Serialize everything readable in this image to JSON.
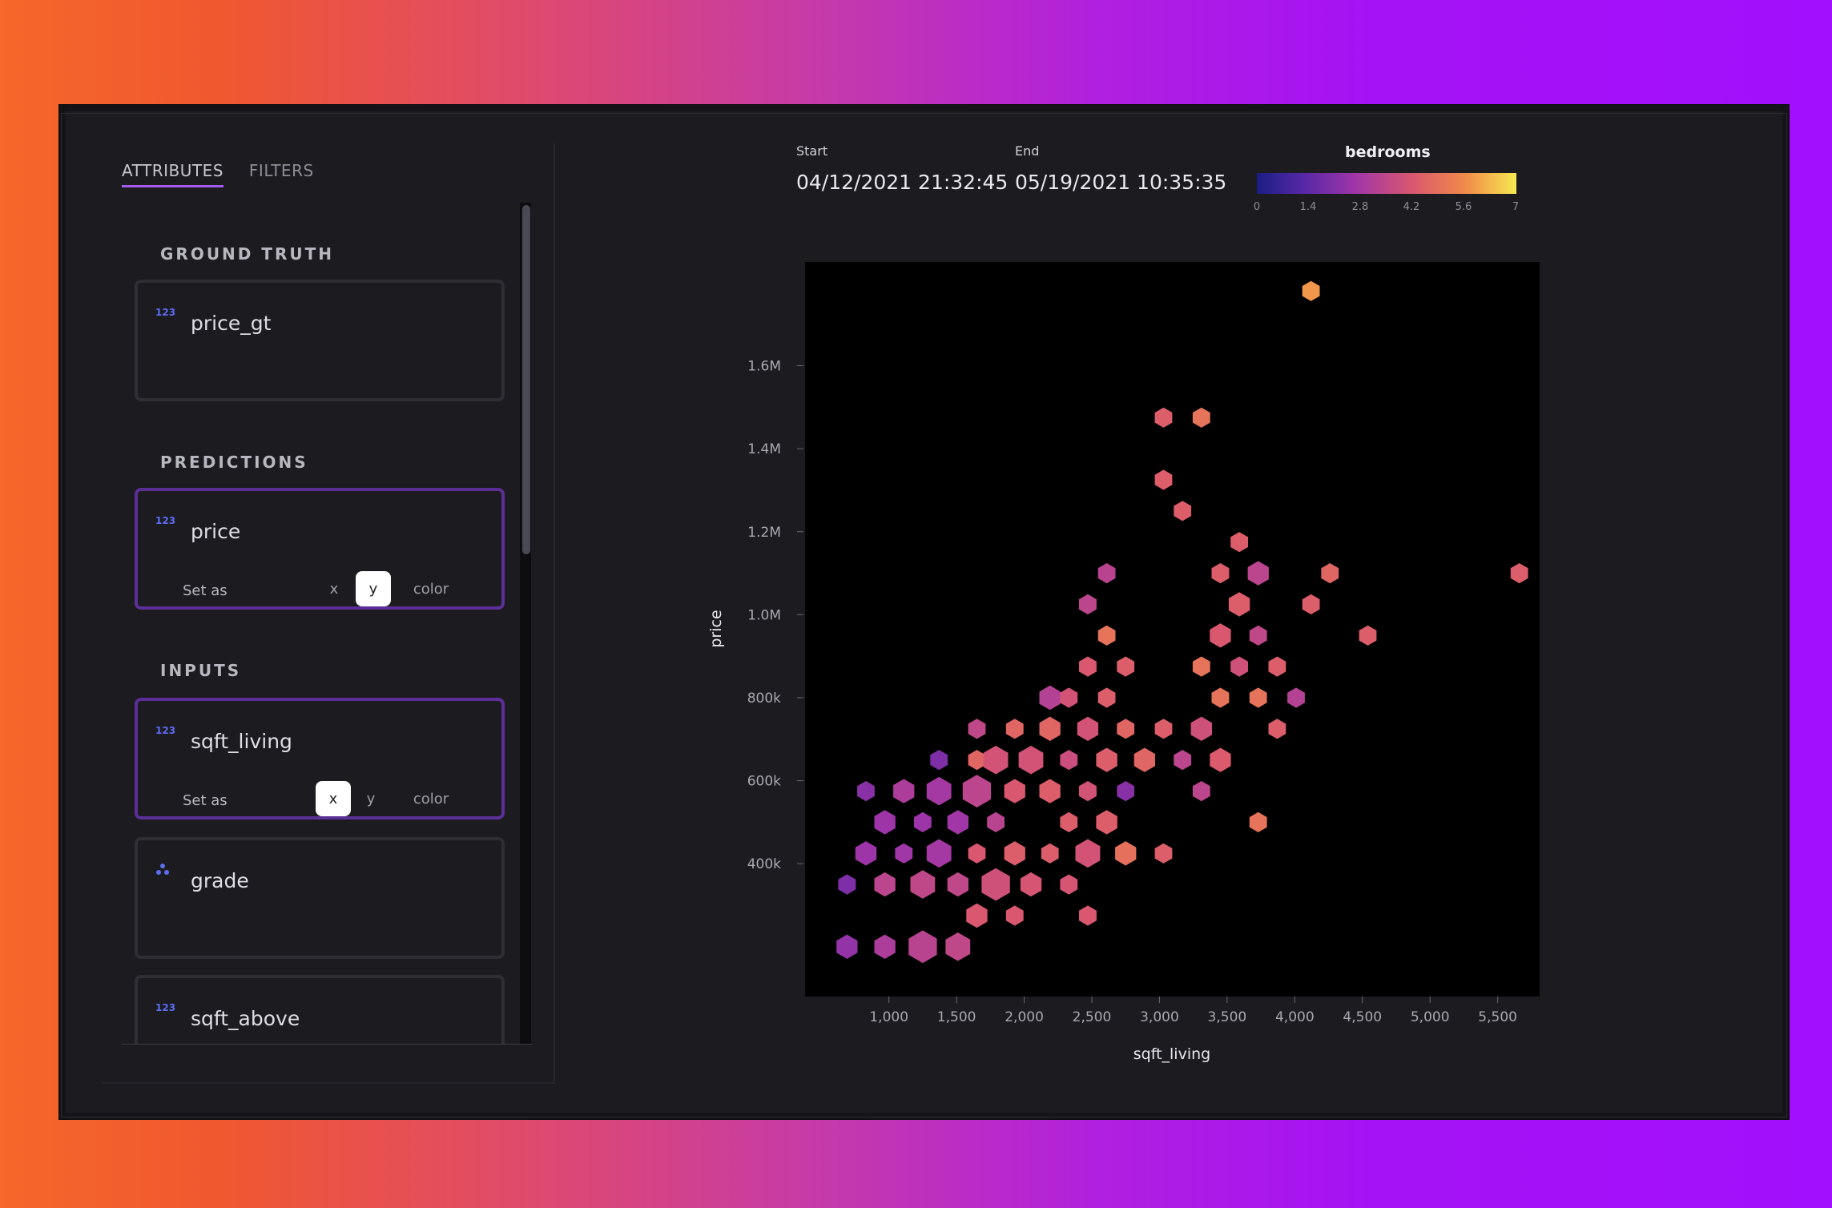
{
  "tabs": [
    "ATTRIBUTES",
    "FILTERS"
  ],
  "sections": {
    "ground_truth": "GROUND TRUTH",
    "predictions": "PREDICTIONS",
    "inputs": "INPUTS"
  },
  "cards": {
    "price_gt": {
      "name": "price_gt",
      "type_icon": "numeric-icon"
    },
    "price": {
      "name": "price",
      "type_icon": "numeric-icon",
      "set_as": "Set as",
      "x": "x",
      "y": "y",
      "color": "color",
      "selected_axis": "y"
    },
    "sqft_living": {
      "name": "sqft_living",
      "type_icon": "numeric-icon",
      "set_as": "Set as",
      "x": "x",
      "y": "y",
      "color": "color",
      "selected_axis": "x"
    },
    "grade": {
      "name": "grade",
      "type_icon": "categorical-icon"
    },
    "sqft_above": {
      "name": "sqft_above",
      "type_icon": "numeric-icon"
    }
  },
  "numeric_icon_text": "123",
  "time_range": {
    "start_label": "Start",
    "start_value": "04/12/2021 21:32:45",
    "end_label": "End",
    "end_value": "05/19/2021 10:35:35"
  },
  "legend": {
    "title": "bedrooms",
    "ticks": [
      "0",
      "1.4",
      "2.8",
      "4.2",
      "5.6",
      "7"
    ]
  },
  "colors": {
    "accent": "#a45cf0",
    "selected_border": "#5c2f98",
    "icon_blue": "#5d6cf3"
  },
  "chart_data": {
    "type": "heatmap",
    "subtype": "hexbin",
    "xlabel": "sqft_living",
    "ylabel": "price",
    "color_attribute": "bedrooms",
    "color_range": [
      0,
      7
    ],
    "x_ticks": [
      "1,000",
      "1,500",
      "2,000",
      "2,500",
      "3,000",
      "3,500",
      "4,000",
      "4,500",
      "5,000",
      "5,500"
    ],
    "y_ticks": [
      "400k",
      "600k",
      "800k",
      "1.0M",
      "1.2M",
      "1.4M",
      "1.6M"
    ],
    "xlim": [
      380,
      5810
    ],
    "ylim": [
      80000,
      1850000
    ],
    "bins": [
      {
        "x": 4120,
        "y": 1780000,
        "c": 5.8,
        "n": 1
      },
      {
        "x": 3030,
        "y": 1475000,
        "c": 4.4,
        "n": 1
      },
      {
        "x": 3310,
        "y": 1475000,
        "c": 5.0,
        "n": 1
      },
      {
        "x": 3030,
        "y": 1325000,
        "c": 4.4,
        "n": 1
      },
      {
        "x": 3170,
        "y": 1250000,
        "c": 4.4,
        "n": 1
      },
      {
        "x": 3590,
        "y": 1175000,
        "c": 4.4,
        "n": 1
      },
      {
        "x": 2610,
        "y": 1100000,
        "c": 3.3,
        "n": 1
      },
      {
        "x": 3450,
        "y": 1100000,
        "c": 4.4,
        "n": 1
      },
      {
        "x": 3730,
        "y": 1100000,
        "c": 3.4,
        "n": 2
      },
      {
        "x": 4260,
        "y": 1100000,
        "c": 4.6,
        "n": 1
      },
      {
        "x": 5660,
        "y": 1100000,
        "c": 4.4,
        "n": 1
      },
      {
        "x": 2470,
        "y": 1025000,
        "c": 3.4,
        "n": 1
      },
      {
        "x": 3590,
        "y": 1025000,
        "c": 4.4,
        "n": 2
      },
      {
        "x": 4120,
        "y": 1025000,
        "c": 4.4,
        "n": 1
      },
      {
        "x": 2610,
        "y": 950000,
        "c": 5.0,
        "n": 1
      },
      {
        "x": 3450,
        "y": 950000,
        "c": 4.2,
        "n": 2
      },
      {
        "x": 3730,
        "y": 950000,
        "c": 3.5,
        "n": 1
      },
      {
        "x": 4540,
        "y": 950000,
        "c": 4.4,
        "n": 1
      },
      {
        "x": 2470,
        "y": 875000,
        "c": 4.2,
        "n": 1
      },
      {
        "x": 2750,
        "y": 875000,
        "c": 4.4,
        "n": 1
      },
      {
        "x": 3310,
        "y": 875000,
        "c": 5.0,
        "n": 1
      },
      {
        "x": 3590,
        "y": 875000,
        "c": 3.9,
        "n": 1
      },
      {
        "x": 3870,
        "y": 875000,
        "c": 4.4,
        "n": 1
      },
      {
        "x": 2190,
        "y": 800000,
        "c": 3.2,
        "n": 2
      },
      {
        "x": 2330,
        "y": 800000,
        "c": 4.0,
        "n": 1
      },
      {
        "x": 2610,
        "y": 800000,
        "c": 4.4,
        "n": 1
      },
      {
        "x": 3450,
        "y": 800000,
        "c": 5.0,
        "n": 1
      },
      {
        "x": 3730,
        "y": 800000,
        "c": 5.0,
        "n": 1
      },
      {
        "x": 4010,
        "y": 800000,
        "c": 3.2,
        "n": 1
      },
      {
        "x": 1650,
        "y": 725000,
        "c": 3.5,
        "n": 1
      },
      {
        "x": 1930,
        "y": 725000,
        "c": 4.6,
        "n": 1
      },
      {
        "x": 2190,
        "y": 725000,
        "c": 4.6,
        "n": 2
      },
      {
        "x": 2470,
        "y": 725000,
        "c": 4.0,
        "n": 2
      },
      {
        "x": 2750,
        "y": 725000,
        "c": 4.6,
        "n": 1
      },
      {
        "x": 3030,
        "y": 725000,
        "c": 4.4,
        "n": 1
      },
      {
        "x": 3310,
        "y": 725000,
        "c": 3.9,
        "n": 2
      },
      {
        "x": 3870,
        "y": 725000,
        "c": 4.4,
        "n": 1
      },
      {
        "x": 1370,
        "y": 650000,
        "c": 2.0,
        "n": 1
      },
      {
        "x": 1650,
        "y": 650000,
        "c": 4.6,
        "n": 1
      },
      {
        "x": 1790,
        "y": 650000,
        "c": 4.0,
        "n": 3
      },
      {
        "x": 2050,
        "y": 650000,
        "c": 4.0,
        "n": 3
      },
      {
        "x": 2330,
        "y": 650000,
        "c": 3.8,
        "n": 1
      },
      {
        "x": 2610,
        "y": 650000,
        "c": 4.4,
        "n": 2
      },
      {
        "x": 2890,
        "y": 650000,
        "c": 4.6,
        "n": 2
      },
      {
        "x": 3170,
        "y": 650000,
        "c": 3.4,
        "n": 1
      },
      {
        "x": 3450,
        "y": 650000,
        "c": 4.3,
        "n": 2
      },
      {
        "x": 830,
        "y": 575000,
        "c": 2.2,
        "n": 1
      },
      {
        "x": 1110,
        "y": 575000,
        "c": 3.0,
        "n": 2
      },
      {
        "x": 1370,
        "y": 575000,
        "c": 2.8,
        "n": 3
      },
      {
        "x": 1650,
        "y": 575000,
        "c": 3.4,
        "n": 4
      },
      {
        "x": 1930,
        "y": 575000,
        "c": 4.2,
        "n": 2
      },
      {
        "x": 2190,
        "y": 575000,
        "c": 4.4,
        "n": 2
      },
      {
        "x": 2470,
        "y": 575000,
        "c": 4.0,
        "n": 1
      },
      {
        "x": 2750,
        "y": 575000,
        "c": 2.2,
        "n": 1
      },
      {
        "x": 3310,
        "y": 575000,
        "c": 3.4,
        "n": 1
      },
      {
        "x": 970,
        "y": 500000,
        "c": 2.6,
        "n": 2
      },
      {
        "x": 1250,
        "y": 500000,
        "c": 2.6,
        "n": 1
      },
      {
        "x": 1510,
        "y": 500000,
        "c": 2.7,
        "n": 2
      },
      {
        "x": 1790,
        "y": 500000,
        "c": 3.3,
        "n": 1
      },
      {
        "x": 2330,
        "y": 500000,
        "c": 4.4,
        "n": 1
      },
      {
        "x": 2610,
        "y": 500000,
        "c": 4.4,
        "n": 2
      },
      {
        "x": 3730,
        "y": 500000,
        "c": 5.0,
        "n": 1
      },
      {
        "x": 830,
        "y": 425000,
        "c": 2.6,
        "n": 2
      },
      {
        "x": 1110,
        "y": 425000,
        "c": 2.7,
        "n": 1
      },
      {
        "x": 1370,
        "y": 425000,
        "c": 2.8,
        "n": 3
      },
      {
        "x": 1650,
        "y": 425000,
        "c": 4.2,
        "n": 1
      },
      {
        "x": 1930,
        "y": 425000,
        "c": 4.4,
        "n": 2
      },
      {
        "x": 2190,
        "y": 425000,
        "c": 4.4,
        "n": 1
      },
      {
        "x": 2470,
        "y": 425000,
        "c": 4.0,
        "n": 3
      },
      {
        "x": 2750,
        "y": 425000,
        "c": 4.9,
        "n": 2
      },
      {
        "x": 3030,
        "y": 425000,
        "c": 4.4,
        "n": 1
      },
      {
        "x": 690,
        "y": 350000,
        "c": 2.0,
        "n": 1
      },
      {
        "x": 970,
        "y": 350000,
        "c": 3.4,
        "n": 2
      },
      {
        "x": 1250,
        "y": 350000,
        "c": 3.5,
        "n": 3
      },
      {
        "x": 1510,
        "y": 350000,
        "c": 3.5,
        "n": 2
      },
      {
        "x": 1790,
        "y": 350000,
        "c": 3.9,
        "n": 4
      },
      {
        "x": 2050,
        "y": 350000,
        "c": 4.1,
        "n": 2
      },
      {
        "x": 2330,
        "y": 350000,
        "c": 4.1,
        "n": 1
      },
      {
        "x": 1650,
        "y": 275000,
        "c": 4.2,
        "n": 2
      },
      {
        "x": 1930,
        "y": 275000,
        "c": 4.2,
        "n": 1
      },
      {
        "x": 2470,
        "y": 275000,
        "c": 4.2,
        "n": 1
      },
      {
        "x": 690,
        "y": 200000,
        "c": 2.4,
        "n": 2
      },
      {
        "x": 970,
        "y": 200000,
        "c": 3.0,
        "n": 2
      },
      {
        "x": 1250,
        "y": 200000,
        "c": 3.3,
        "n": 4
      },
      {
        "x": 1510,
        "y": 200000,
        "c": 3.5,
        "n": 3
      }
    ]
  }
}
